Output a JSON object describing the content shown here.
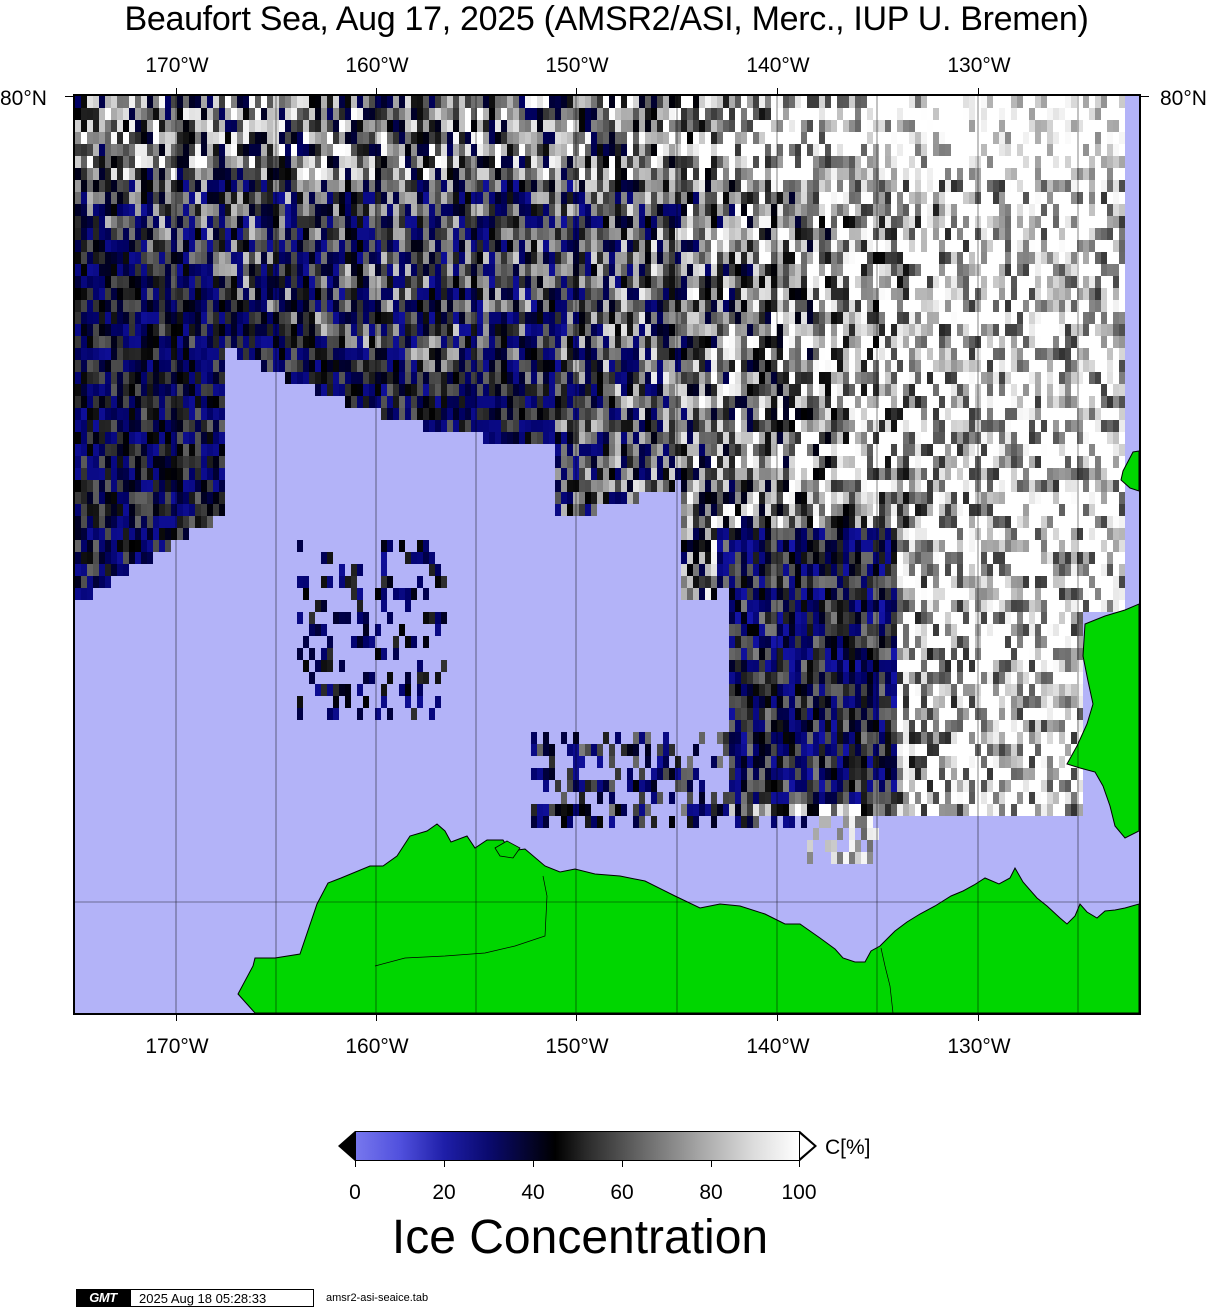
{
  "title": "Beaufort Sea, Aug 17, 2025 (AMSR2/ASI, Merc., IUP U. Bremen)",
  "map": {
    "projection": "Mercator",
    "longitude_labels": [
      "170°W",
      "160°W",
      "150°W",
      "140°W",
      "130°W"
    ],
    "latitude_label": "80°N",
    "colors": {
      "open_water": "#b3b3f8",
      "land": "#00d600",
      "ice_low": "#0a0a6e",
      "ice_mid": "#000000",
      "ice_high": "#ffffff"
    }
  },
  "colorbar": {
    "ticks": [
      "0",
      "20",
      "40",
      "60",
      "80",
      "100"
    ],
    "unit": "C[%]",
    "title": "Ice Concentration"
  },
  "footer": {
    "logo": "GMT",
    "timestamp": "2025 Aug 18 05:28:33",
    "source_file": "amsr2-asi-seaice.tab"
  }
}
